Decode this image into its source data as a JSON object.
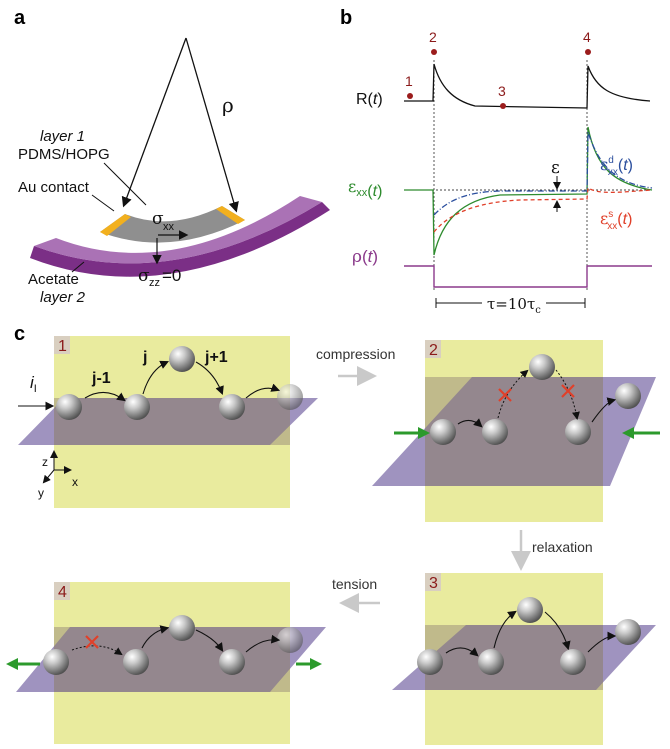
{
  "panel_a": {
    "label": "a",
    "rho": "ρ",
    "layer1_title": "layer 1",
    "layer1_material": "PDMS/HOPG",
    "au_contact": "Au contact",
    "sigma_xx_sym": "σ",
    "sigma_xx_sub": "xx",
    "sigma_zz_sym": "σ",
    "sigma_zz_sub": "zz",
    "sigma_zz_value": "=0",
    "acetate": "Acetate",
    "layer2": "layer 2",
    "colors": {
      "contact": "#f2b01e",
      "substrate": "#7b2f86",
      "film": "#9a9a9a"
    }
  },
  "panel_b": {
    "label": "b",
    "R_label": "R(",
    "t": "t",
    "close": ")",
    "eps_sym": "ε",
    "xx_sub": "xx",
    "d_sup": "d",
    "s_sup": "s",
    "rho_sym": "ρ",
    "tau_label": "τ=10τ",
    "tau_sub": "c",
    "points": [
      "1",
      "2",
      "3",
      "4"
    ],
    "colors": {
      "strain": "#2e8b2e",
      "dynamic": "#2b4f9e",
      "static": "#e0402a",
      "rho": "#8b3a8b",
      "points": "#9b1c1c"
    }
  },
  "panel_c": {
    "label": "c",
    "frame_numbers": [
      "1",
      "2",
      "3",
      "4"
    ],
    "j_minus": "j-1",
    "j": "j",
    "j_plus": "j+1",
    "current_sym": "i",
    "current_sub": "I",
    "axis_z": "z",
    "axis_y": "y",
    "axis_x": "x",
    "compression": "compression",
    "relaxation": "relaxation",
    "tension": "tension",
    "colors": {
      "panel": "#e9eb9e",
      "plane": "#7a6aa6",
      "force": "#2c9a2c",
      "blocked": "#e0402a"
    }
  }
}
